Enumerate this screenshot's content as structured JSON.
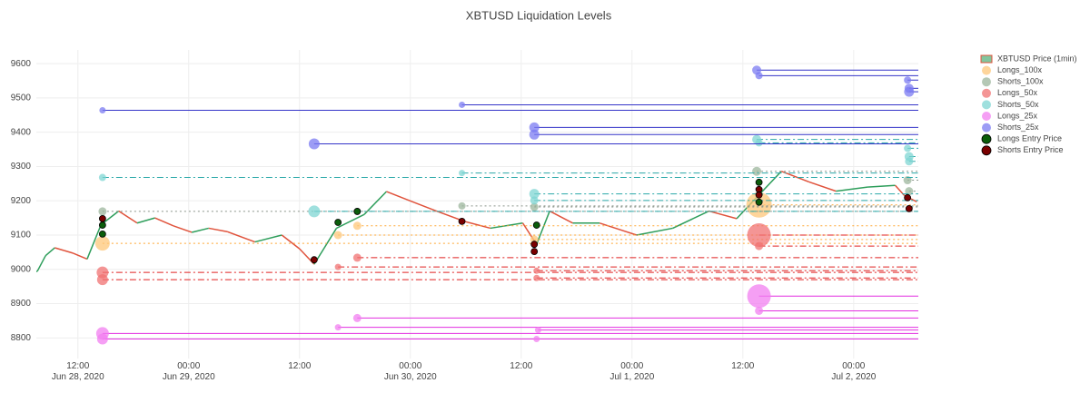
{
  "chart_data": {
    "type": "scatter",
    "title": "XBTUSD Liquidation Levels",
    "xlim": [
      "2020-06-28 07:30",
      "2020-07-02 07:00"
    ],
    "ylim": [
      8740,
      9640
    ],
    "xticks": [
      {
        "value": "2020-06-28 12:00",
        "label": "12:00\nJun 28, 2020"
      },
      {
        "value": "2020-06-29 00:00",
        "label": "00:00\nJun 29, 2020"
      },
      {
        "value": "2020-06-29 12:00",
        "label": "12:00"
      },
      {
        "value": "2020-06-30 00:00",
        "label": "00:00\nJun 30, 2020"
      },
      {
        "value": "2020-06-30 12:00",
        "label": "12:00"
      },
      {
        "value": "2020-07-01 00:00",
        "label": "00:00\nJul 1, 2020"
      },
      {
        "value": "2020-07-01 12:00",
        "label": "12:00"
      },
      {
        "value": "2020-07-02 00:00",
        "label": "00:00\nJul 2, 2020"
      }
    ],
    "yticks": [
      8800,
      8900,
      9000,
      9100,
      9200,
      9300,
      9400,
      9500,
      9600
    ],
    "grid": true,
    "legend": "top-right",
    "series": [
      {
        "name": "XBTUSD Price (1min)",
        "type": "line",
        "increasing_color": "#2e9e5b",
        "decreasing_color": "#e0533c",
        "x": [
          "2020-06-28 07:36",
          "2020-06-28 08:30",
          "2020-06-28 09:30",
          "2020-06-28 10:30",
          "2020-06-28 11:30",
          "2020-06-28 13:00",
          "2020-06-28 14:30",
          "2020-06-28 16:25",
          "2020-06-28 18:25",
          "2020-06-28 20:20",
          "2020-06-28 22:20",
          "2020-06-29 00:20",
          "2020-06-29 02:10",
          "2020-06-29 04:10",
          "2020-06-29 07:10",
          "2020-06-29 10:05",
          "2020-06-29 12:00",
          "2020-06-29 13:35",
          "2020-06-29 16:00",
          "2020-06-29 19:00",
          "2020-06-29 21:25",
          "2020-06-30 00:25",
          "2020-06-30 02:50",
          "2020-06-30 05:50",
          "2020-06-30 08:40",
          "2020-06-30 12:10",
          "2020-06-30 13:40",
          "2020-06-30 15:05",
          "2020-06-30 17:35",
          "2020-06-30 20:30",
          "2020-07-01 00:30",
          "2020-07-01 04:25",
          "2020-07-01 08:20",
          "2020-07-01 11:20",
          "2020-07-01 13:40",
          "2020-07-01 16:10",
          "2020-07-01 19:10",
          "2020-07-01 22:05",
          "2020-07-02 01:30",
          "2020-07-02 04:30",
          "2020-07-02 05:30",
          "2020-07-02 06:50"
        ],
        "values": [
          8994,
          9040,
          9063,
          9055,
          9047,
          9030,
          9130,
          9170,
          9135,
          9150,
          9127,
          9108,
          9120,
          9110,
          9080,
          9100,
          9060,
          9015,
          9120,
          9160,
          9227,
          9195,
          9170,
          9140,
          9120,
          9135,
          9073,
          9170,
          9135,
          9135,
          9100,
          9120,
          9170,
          9148,
          9215,
          9286,
          9255,
          9228,
          9240,
          9245,
          9215,
          9197
        ]
      },
      {
        "name": "Longs_100x",
        "type": "scatter",
        "color": "#fdc77a",
        "line_color": "#ffa733",
        "dash": "dot",
        "x": [
          "2020-06-28 14:40",
          "2020-06-29 16:10",
          "2020-06-29 18:15",
          "2020-06-30 13:25",
          "2020-07-01 13:45"
        ],
        "values": [
          9076,
          9100,
          9127,
          9087,
          9188
        ],
        "sizes": [
          16,
          9,
          9,
          9,
          28
        ]
      },
      {
        "name": "Shorts_100x",
        "type": "scatter",
        "color": "#9cb59c",
        "line_color": "#8a948a",
        "dash": "dot",
        "x": [
          "2020-06-28 14:40",
          "2020-06-30 05:35",
          "2020-06-30 13:25",
          "2020-07-01 13:30",
          "2020-07-02 05:50",
          "2020-07-02 06:00"
        ],
        "values": [
          9169,
          9185,
          9182,
          9286,
          9260,
          9228
        ],
        "sizes": [
          9,
          8,
          9,
          10,
          9,
          9
        ]
      },
      {
        "name": "Longs_50x",
        "type": "scatter",
        "color": "#f07272",
        "line_color": "#e02020",
        "dash": "dashdot",
        "x": [
          "2020-06-28 14:40",
          "2020-06-28 14:40",
          "2020-06-29 16:10",
          "2020-06-29 18:15",
          "2020-06-30 13:40",
          "2020-06-30 13:40",
          "2020-07-01 13:45",
          "2020-07-01 13:45"
        ],
        "values": [
          8991,
          8970,
          9007,
          9034,
          8996,
          8975,
          9100,
          9068
        ],
        "sizes": [
          13,
          12,
          7,
          9,
          7,
          7,
          26,
          9
        ]
      },
      {
        "name": "Shorts_50x",
        "type": "scatter",
        "color": "#7fd6d3",
        "line_color": "#2aa8a8",
        "dash": "dashdot",
        "x": [
          "2020-06-28 14:40",
          "2020-06-29 13:35",
          "2020-06-30 05:35",
          "2020-06-30 13:25",
          "2020-06-30 13:25",
          "2020-07-01 13:30",
          "2020-07-01 13:45",
          "2020-07-02 05:50",
          "2020-07-02 06:00",
          "2020-07-02 06:00"
        ],
        "values": [
          9268,
          9169,
          9281,
          9220,
          9201,
          9379,
          9369,
          9353,
          9329,
          9315
        ],
        "sizes": [
          8,
          13,
          7,
          11,
          9,
          10,
          8,
          8,
          10,
          9
        ]
      },
      {
        "name": "Longs_25x",
        "type": "scatter",
        "color": "#f27ff0",
        "line_color": "#e22ee0",
        "dash": "solid",
        "x": [
          "2020-06-28 14:40",
          "2020-06-28 14:40",
          "2020-06-29 16:10",
          "2020-06-29 18:15",
          "2020-06-30 13:50",
          "2020-06-30 13:40",
          "2020-07-01 13:45",
          "2020-07-01 13:45"
        ],
        "values": [
          8813,
          8797,
          8831,
          8858,
          8823,
          8797,
          8922,
          8879
        ],
        "sizes": [
          14,
          12,
          7,
          9,
          7,
          7,
          26,
          9
        ]
      },
      {
        "name": "Shorts_25x",
        "type": "scatter",
        "color": "#7b7bf2",
        "line_color": "#3434c8",
        "dash": "solid",
        "x": [
          "2020-06-28 14:40",
          "2020-06-29 13:35",
          "2020-06-30 05:35",
          "2020-06-30 13:25",
          "2020-06-30 13:25",
          "2020-07-01 13:30",
          "2020-07-01 13:45",
          "2020-07-02 05:50",
          "2020-07-02 06:00",
          "2020-07-02 06:00"
        ],
        "values": [
          9464,
          9366,
          9480,
          9414,
          9393,
          9581,
          9565,
          9552,
          9528,
          9518
        ],
        "sizes": [
          7,
          12,
          7,
          11,
          11,
          10,
          8,
          8,
          10,
          11
        ]
      },
      {
        "name": "Longs Entry Price",
        "type": "scatter",
        "color": "#0b5d0b",
        "x": [
          "2020-06-28 14:40",
          "2020-06-28 14:40",
          "2020-06-29 16:10",
          "2020-06-29 18:15",
          "2020-06-30 13:40",
          "2020-07-01 13:45",
          "2020-07-01 13:45"
        ],
        "values": [
          9129,
          9103,
          9137,
          9169,
          9129,
          9254,
          9196
        ],
        "sizes": [
          7,
          7,
          7,
          7,
          7,
          7,
          7
        ]
      },
      {
        "name": "Shorts Entry Price",
        "type": "scatter",
        "color": "#7a0000",
        "x": [
          "2020-06-28 14:40",
          "2020-06-29 13:35",
          "2020-06-30 05:35",
          "2020-06-30 13:25",
          "2020-06-30 13:25",
          "2020-07-01 13:45",
          "2020-07-01 13:45",
          "2020-07-02 05:50",
          "2020-07-02 06:00"
        ],
        "values": [
          9148,
          9028,
          9140,
          9073,
          9052,
          9233,
          9217,
          9209,
          9177
        ],
        "sizes": [
          7,
          7,
          7,
          7,
          7,
          7,
          7,
          7,
          7
        ]
      }
    ]
  }
}
